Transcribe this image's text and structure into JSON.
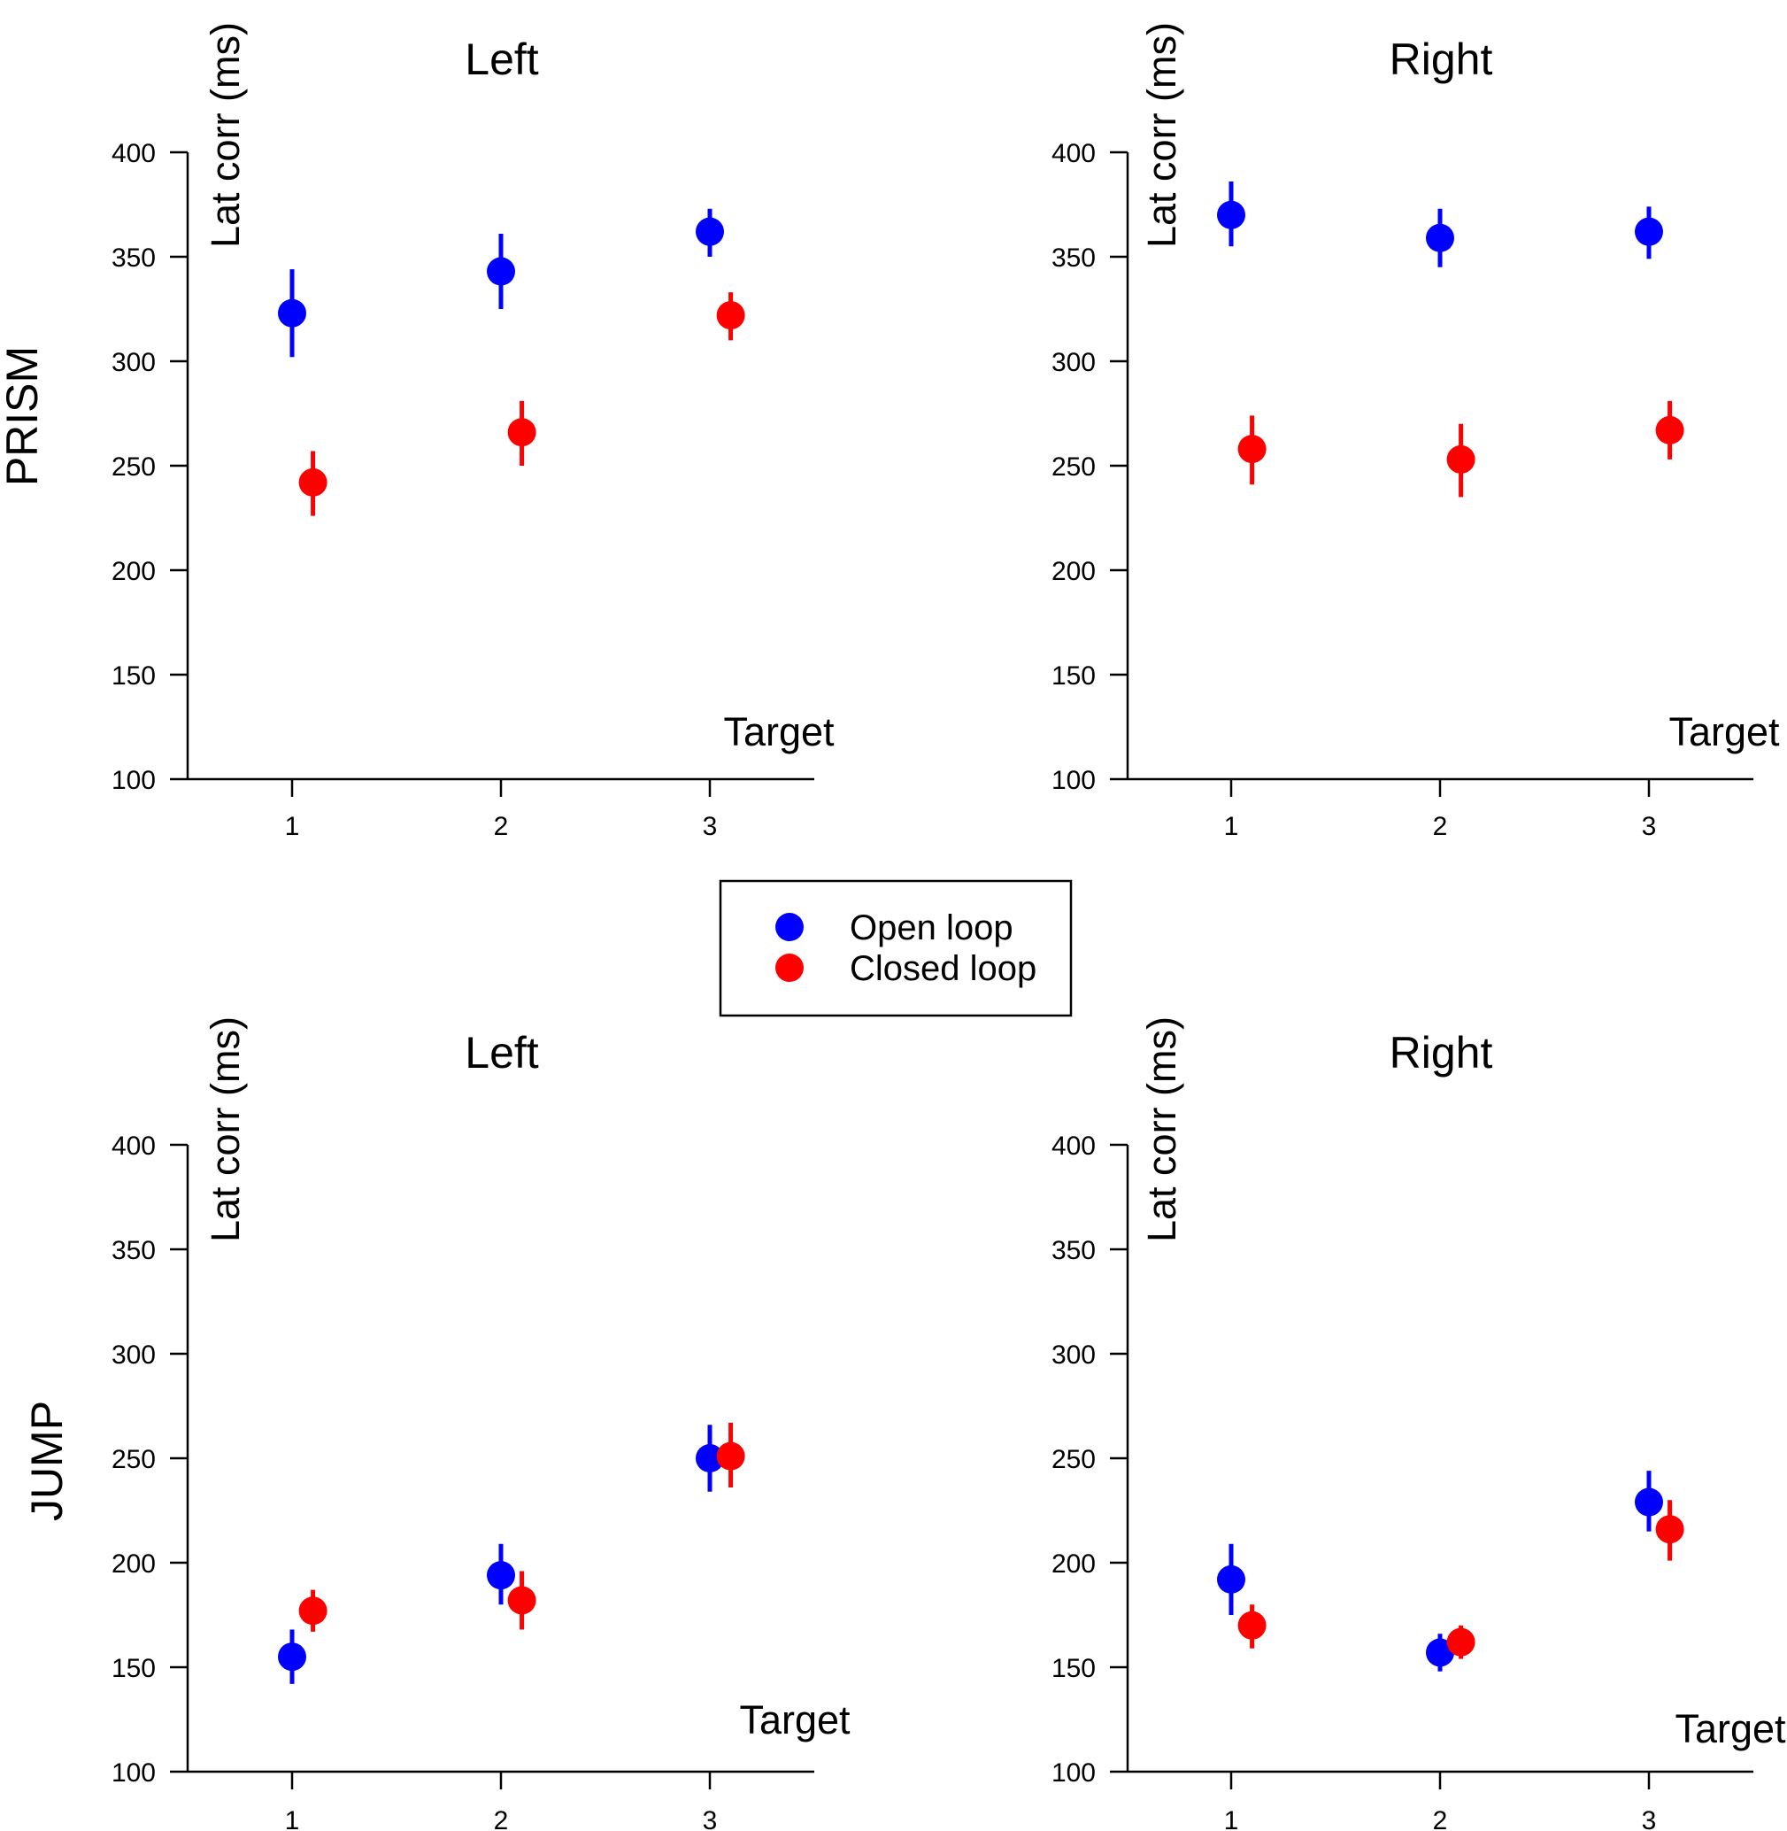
{
  "colors": {
    "open_loop": "#0000ff",
    "closed_loop": "#ff0000",
    "axis": "#000000"
  },
  "legend": {
    "items": [
      {
        "label": "Open loop",
        "color": "#0000ff"
      },
      {
        "label": "Closed loop",
        "color": "#ff0000"
      }
    ]
  },
  "row_labels": [
    "PRISM",
    "JUMP"
  ],
  "chart_data": [
    {
      "type": "scatter",
      "row": "PRISM",
      "title": "Left",
      "ylabel": "Lat corr (ms)",
      "xlabel": "Target",
      "x_ticks": [
        "1",
        "2",
        "3"
      ],
      "y_ticks": [
        "100",
        "150",
        "200",
        "250",
        "300",
        "350",
        "400"
      ],
      "ylim": [
        100,
        400
      ],
      "series": [
        {
          "name": "Open loop",
          "color": "#0000ff",
          "x": [
            1,
            2,
            3
          ],
          "values": [
            323,
            343,
            362
          ],
          "error_low": [
            302,
            325,
            350
          ],
          "error_high": [
            344,
            361,
            373
          ]
        },
        {
          "name": "Closed loop",
          "color": "#ff0000",
          "x": [
            1.1,
            2.1,
            3.1
          ],
          "values": [
            242,
            266,
            322
          ],
          "error_low": [
            226,
            250,
            310
          ],
          "error_high": [
            257,
            281,
            333
          ]
        }
      ]
    },
    {
      "type": "scatter",
      "row": "PRISM",
      "title": "Right",
      "ylabel": "Lat corr (ms)",
      "xlabel": "Target",
      "x_ticks": [
        "1",
        "2",
        "3"
      ],
      "y_ticks": [
        "100",
        "150",
        "200",
        "250",
        "300",
        "350",
        "400"
      ],
      "ylim": [
        100,
        400
      ],
      "series": [
        {
          "name": "Open loop",
          "color": "#0000ff",
          "x": [
            1,
            2,
            3
          ],
          "values": [
            370,
            359,
            362
          ],
          "error_low": [
            355,
            345,
            349
          ],
          "error_high": [
            386,
            373,
            374
          ]
        },
        {
          "name": "Closed loop",
          "color": "#ff0000",
          "x": [
            1.1,
            2.1,
            3.1
          ],
          "values": [
            258,
            253,
            267
          ],
          "error_low": [
            241,
            235,
            253
          ],
          "error_high": [
            274,
            270,
            281
          ]
        }
      ]
    },
    {
      "type": "scatter",
      "row": "JUMP",
      "title": "Left",
      "ylabel": "Lat corr (ms)",
      "xlabel": "Target",
      "x_ticks": [
        "1",
        "2",
        "3"
      ],
      "y_ticks": [
        "100",
        "150",
        "200",
        "250",
        "300",
        "350",
        "400"
      ],
      "ylim": [
        100,
        400
      ],
      "series": [
        {
          "name": "Open loop",
          "color": "#0000ff",
          "x": [
            1,
            2,
            3
          ],
          "values": [
            155,
            194,
            250
          ],
          "error_low": [
            142,
            180,
            234
          ],
          "error_high": [
            168,
            209,
            266
          ]
        },
        {
          "name": "Closed loop",
          "color": "#ff0000",
          "x": [
            1.1,
            2.1,
            3.1
          ],
          "values": [
            177,
            182,
            251
          ],
          "error_low": [
            167,
            168,
            236
          ],
          "error_high": [
            187,
            196,
            267
          ]
        }
      ]
    },
    {
      "type": "scatter",
      "row": "JUMP",
      "title": "Right",
      "ylabel": "Lat corr (ms)",
      "xlabel": "Target",
      "x_ticks": [
        "1",
        "2",
        "3"
      ],
      "y_ticks": [
        "100",
        "150",
        "200",
        "250",
        "300",
        "350",
        "400"
      ],
      "ylim": [
        100,
        400
      ],
      "series": [
        {
          "name": "Open loop",
          "color": "#0000ff",
          "x": [
            1,
            2,
            3
          ],
          "values": [
            192,
            157,
            229
          ],
          "error_low": [
            175,
            148,
            215
          ],
          "error_high": [
            209,
            166,
            244
          ]
        },
        {
          "name": "Closed loop",
          "color": "#ff0000",
          "x": [
            1.1,
            2.1,
            3.1
          ],
          "values": [
            170,
            162,
            216
          ],
          "error_low": [
            159,
            154,
            201
          ],
          "error_high": [
            180,
            170,
            230
          ]
        }
      ]
    }
  ]
}
